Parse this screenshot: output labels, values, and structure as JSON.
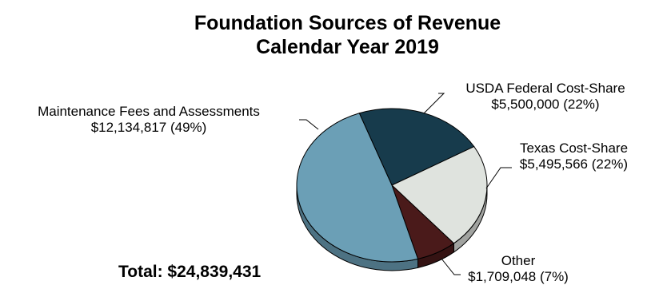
{
  "chart_data": {
    "type": "pie",
    "title": "Foundation Sources of Revenue",
    "subtitle": "Calendar Year 2019",
    "total_label": "Total: $24,839,431",
    "slices": [
      {
        "label": "USDA Federal Cost-Share",
        "value_text": "$5,500,000 (22%)",
        "value": 5500000,
        "percent": 22,
        "color": "#173b4c"
      },
      {
        "label": "Texas Cost-Share",
        "value_text": "$5,495,566 (22%)",
        "value": 5495566,
        "percent": 22,
        "color": "#dfe3de"
      },
      {
        "label": "Other",
        "value_text": "$1,709,048 (7%)",
        "value": 1709048,
        "percent": 7,
        "color": "#4a1a1a"
      },
      {
        "label": "Maintenance Fees and Assessments",
        "value_text": "$12,134,817 (49%)",
        "value": 12134817,
        "percent": 49,
        "color": "#6b9fb6"
      }
    ]
  }
}
